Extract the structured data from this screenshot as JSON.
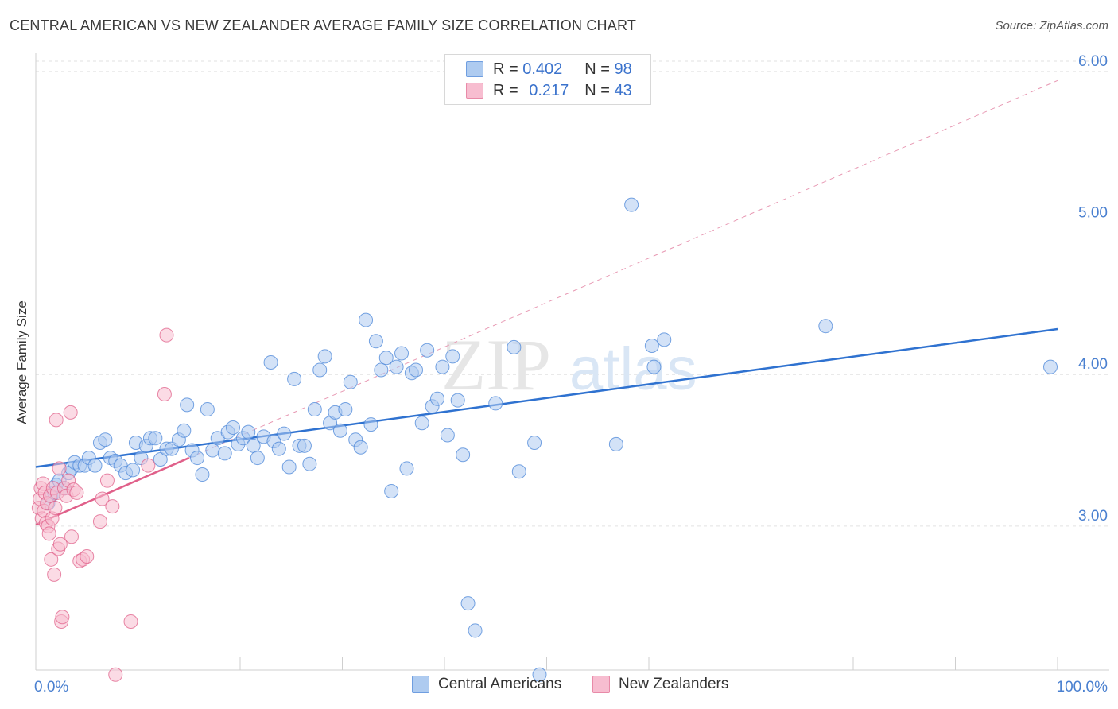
{
  "title": "CENTRAL AMERICAN VS NEW ZEALANDER AVERAGE FAMILY SIZE CORRELATION CHART",
  "source": "Source: ZipAtlas.com",
  "watermark": {
    "zip": "ZIP",
    "atlas": "atlas"
  },
  "legend": {
    "rows": [
      {
        "r_label": "R = ",
        "r_value": "0.402",
        "n_label": "N = ",
        "n_value": "98",
        "color": "#aecbf0"
      },
      {
        "r_label": "R = ",
        "r_value": "0.217",
        "n_label": "N = ",
        "n_value": "43",
        "color": "#f7bdd0"
      }
    ]
  },
  "bottom_legend": {
    "series1": "Central Americans",
    "series2": "New Zealanders"
  },
  "chart_data": {
    "type": "scatter",
    "title": "CENTRAL AMERICAN VS NEW ZEALANDER AVERAGE FAMILY SIZE CORRELATION CHART",
    "xlabel": "",
    "ylabel": "Average Family Size",
    "xlim": [
      0,
      100
    ],
    "ylim": [
      2.05,
      6.12
    ],
    "x_tick_labels": [
      "0.0%",
      "100.0%"
    ],
    "y_ticks": [
      3.0,
      4.0,
      5.0,
      6.0
    ],
    "y_tick_labels": [
      "3.00",
      "4.00",
      "5.00",
      "6.00"
    ],
    "series": [
      {
        "name": "Central Americans",
        "color": "#4a86d8",
        "fill": "#aecbf0",
        "trend": {
          "x": [
            0,
            100
          ],
          "y": [
            3.39,
            4.3
          ]
        },
        "points": [
          [
            1.2,
            3.15
          ],
          [
            1.5,
            3.2
          ],
          [
            1.8,
            3.22
          ],
          [
            2.0,
            3.27
          ],
          [
            2.3,
            3.3
          ],
          [
            2.8,
            3.25
          ],
          [
            3.2,
            3.35
          ],
          [
            3.5,
            3.38
          ],
          [
            3.8,
            3.42
          ],
          [
            4.3,
            3.4
          ],
          [
            4.8,
            3.4
          ],
          [
            5.2,
            3.45
          ],
          [
            5.8,
            3.4
          ],
          [
            6.3,
            3.55
          ],
          [
            6.8,
            3.57
          ],
          [
            7.3,
            3.45
          ],
          [
            7.8,
            3.43
          ],
          [
            8.3,
            3.4
          ],
          [
            8.8,
            3.35
          ],
          [
            9.5,
            3.37
          ],
          [
            9.8,
            3.55
          ],
          [
            10.3,
            3.45
          ],
          [
            10.8,
            3.53
          ],
          [
            11.2,
            3.58
          ],
          [
            11.7,
            3.58
          ],
          [
            12.2,
            3.44
          ],
          [
            12.8,
            3.51
          ],
          [
            13.3,
            3.51
          ],
          [
            14.0,
            3.57
          ],
          [
            14.5,
            3.63
          ],
          [
            14.8,
            3.8
          ],
          [
            15.3,
            3.5
          ],
          [
            15.8,
            3.45
          ],
          [
            16.3,
            3.34
          ],
          [
            16.8,
            3.77
          ],
          [
            17.3,
            3.5
          ],
          [
            17.8,
            3.58
          ],
          [
            18.5,
            3.48
          ],
          [
            18.8,
            3.62
          ],
          [
            19.3,
            3.65
          ],
          [
            19.8,
            3.54
          ],
          [
            20.3,
            3.58
          ],
          [
            20.8,
            3.62
          ],
          [
            21.3,
            3.53
          ],
          [
            21.7,
            3.45
          ],
          [
            22.3,
            3.59
          ],
          [
            23.0,
            4.08
          ],
          [
            23.3,
            3.56
          ],
          [
            23.8,
            3.51
          ],
          [
            24.3,
            3.61
          ],
          [
            24.8,
            3.39
          ],
          [
            25.3,
            3.97
          ],
          [
            25.8,
            3.53
          ],
          [
            26.3,
            3.53
          ],
          [
            26.8,
            3.41
          ],
          [
            27.3,
            3.77
          ],
          [
            27.8,
            4.03
          ],
          [
            28.3,
            4.12
          ],
          [
            28.8,
            3.68
          ],
          [
            29.3,
            3.75
          ],
          [
            29.8,
            3.63
          ],
          [
            30.3,
            3.77
          ],
          [
            30.8,
            3.95
          ],
          [
            31.3,
            3.57
          ],
          [
            31.8,
            3.52
          ],
          [
            32.3,
            4.36
          ],
          [
            32.8,
            3.67
          ],
          [
            33.3,
            4.22
          ],
          [
            33.8,
            4.03
          ],
          [
            34.3,
            4.11
          ],
          [
            34.8,
            3.23
          ],
          [
            35.3,
            4.05
          ],
          [
            35.8,
            4.14
          ],
          [
            36.3,
            3.38
          ],
          [
            36.8,
            4.01
          ],
          [
            37.2,
            4.03
          ],
          [
            37.8,
            3.68
          ],
          [
            38.3,
            4.16
          ],
          [
            38.8,
            3.79
          ],
          [
            39.3,
            3.84
          ],
          [
            39.8,
            4.05
          ],
          [
            40.3,
            3.6
          ],
          [
            40.8,
            4.12
          ],
          [
            41.3,
            3.83
          ],
          [
            41.8,
            3.47
          ],
          [
            42.3,
            2.49
          ],
          [
            43.0,
            2.31
          ],
          [
            45.0,
            3.81
          ],
          [
            46.8,
            4.18
          ],
          [
            47.3,
            3.36
          ],
          [
            48.8,
            3.55
          ],
          [
            49.3,
            2.02
          ],
          [
            56.8,
            3.54
          ],
          [
            58.3,
            5.12
          ],
          [
            60.3,
            4.19
          ],
          [
            60.5,
            4.05
          ],
          [
            61.5,
            4.23
          ],
          [
            77.3,
            4.32
          ],
          [
            99.3,
            4.05
          ]
        ]
      },
      {
        "name": "New Zealanders",
        "color": "#e0608a",
        "fill": "#f7bdd0",
        "trend": {
          "x": [
            0,
            15
          ],
          "y": [
            3.01,
            3.45
          ]
        },
        "trend_extended": {
          "x": [
            0,
            100
          ],
          "y": [
            3.01,
            5.94
          ]
        },
        "points": [
          [
            0.3,
            3.12
          ],
          [
            0.4,
            3.18
          ],
          [
            0.5,
            3.25
          ],
          [
            0.6,
            3.05
          ],
          [
            0.7,
            3.28
          ],
          [
            0.8,
            3.1
          ],
          [
            0.9,
            3.22
          ],
          [
            1.0,
            3.02
          ],
          [
            1.1,
            3.15
          ],
          [
            1.2,
            3.0
          ],
          [
            1.3,
            2.95
          ],
          [
            1.4,
            3.2
          ],
          [
            1.5,
            2.78
          ],
          [
            1.6,
            3.05
          ],
          [
            1.7,
            3.25
          ],
          [
            1.8,
            2.68
          ],
          [
            1.9,
            3.12
          ],
          [
            2.0,
            3.7
          ],
          [
            2.1,
            3.22
          ],
          [
            2.2,
            2.85
          ],
          [
            2.3,
            3.38
          ],
          [
            2.4,
            2.88
          ],
          [
            2.5,
            2.37
          ],
          [
            2.6,
            2.4
          ],
          [
            2.8,
            3.25
          ],
          [
            3.0,
            3.2
          ],
          [
            3.2,
            3.3
          ],
          [
            3.4,
            3.75
          ],
          [
            3.5,
            2.93
          ],
          [
            3.7,
            3.24
          ],
          [
            4.0,
            3.22
          ],
          [
            4.3,
            2.77
          ],
          [
            4.6,
            2.78
          ],
          [
            5.0,
            2.8
          ],
          [
            6.3,
            3.03
          ],
          [
            6.5,
            3.18
          ],
          [
            7.0,
            3.3
          ],
          [
            7.5,
            3.13
          ],
          [
            7.8,
            2.02
          ],
          [
            9.3,
            2.37
          ],
          [
            12.6,
            3.87
          ],
          [
            12.8,
            4.26
          ],
          [
            11.0,
            3.4
          ]
        ]
      }
    ]
  }
}
